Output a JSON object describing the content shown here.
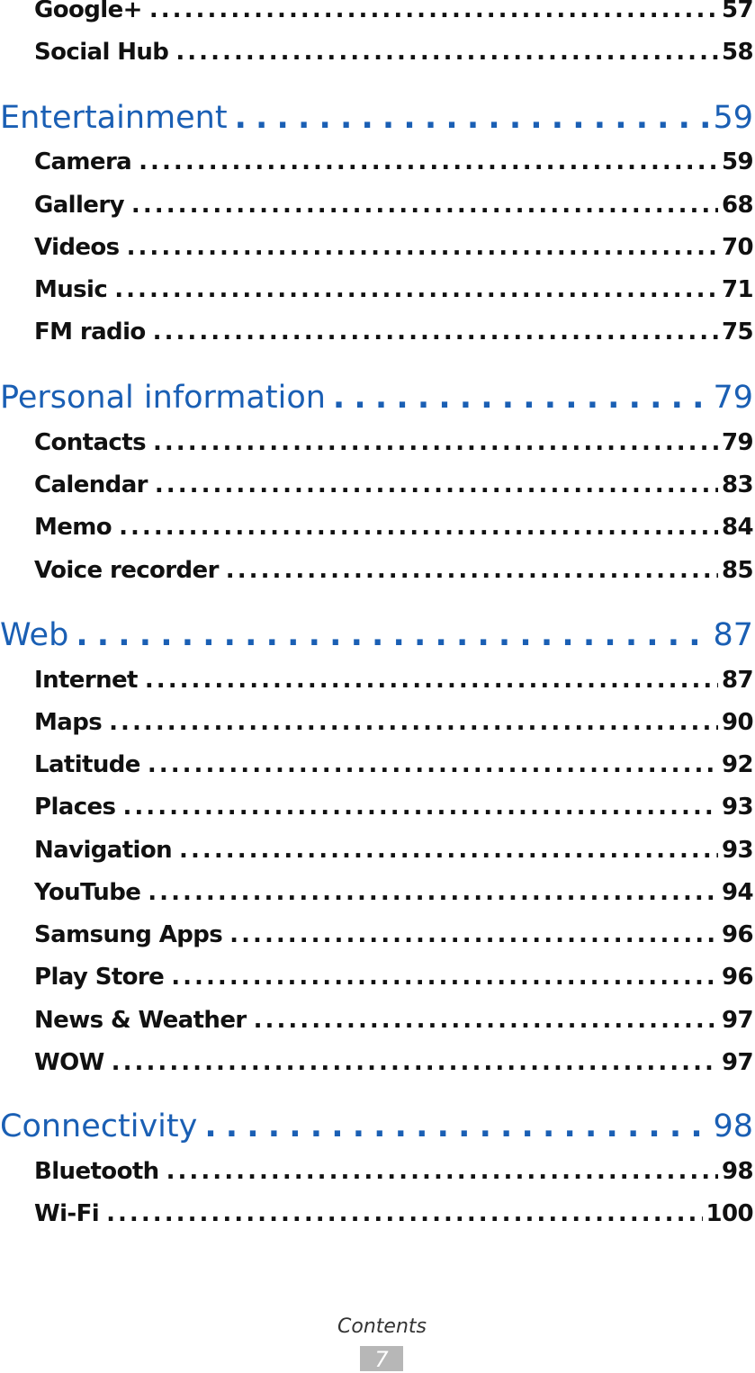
{
  "toc": {
    "entries": [
      {
        "label": "Google+",
        "page": "57",
        "level": "sub"
      },
      {
        "label": "Social Hub",
        "page": "58",
        "level": "sub"
      },
      {
        "label": "Entertainment",
        "page": "59",
        "level": "section"
      },
      {
        "label": "Camera",
        "page": "59",
        "level": "sub"
      },
      {
        "label": "Gallery",
        "page": "68",
        "level": "sub"
      },
      {
        "label": "Videos",
        "page": "70",
        "level": "sub"
      },
      {
        "label": "Music",
        "page": "71",
        "level": "sub"
      },
      {
        "label": "FM radio",
        "page": "75",
        "level": "sub"
      },
      {
        "label": "Personal information",
        "page": "79",
        "level": "section"
      },
      {
        "label": "Contacts",
        "page": "79",
        "level": "sub"
      },
      {
        "label": "Calendar",
        "page": "83",
        "level": "sub"
      },
      {
        "label": "Memo",
        "page": "84",
        "level": "sub"
      },
      {
        "label": "Voice recorder",
        "page": "85",
        "level": "sub"
      },
      {
        "label": "Web",
        "page": "87",
        "level": "section"
      },
      {
        "label": "Internet",
        "page": "87",
        "level": "sub"
      },
      {
        "label": "Maps",
        "page": "90",
        "level": "sub"
      },
      {
        "label": "Latitude",
        "page": "92",
        "level": "sub"
      },
      {
        "label": "Places",
        "page": "93",
        "level": "sub"
      },
      {
        "label": "Navigation",
        "page": "93",
        "level": "sub"
      },
      {
        "label": "YouTube",
        "page": "94",
        "level": "sub"
      },
      {
        "label": "Samsung Apps",
        "page": "96",
        "level": "sub"
      },
      {
        "label": "Play Store",
        "page": "96",
        "level": "sub"
      },
      {
        "label": "News & Weather",
        "page": "97",
        "level": "sub"
      },
      {
        "label": "WOW",
        "page": "97",
        "level": "sub"
      },
      {
        "label": "Connectivity",
        "page": "98",
        "level": "section"
      },
      {
        "label": "Bluetooth",
        "page": "98",
        "level": "sub"
      },
      {
        "label": "Wi-Fi",
        "page": "100",
        "level": "sub"
      }
    ]
  },
  "footer": {
    "label": "Contents",
    "page_number": "7"
  },
  "colors": {
    "section": "#1a5fb4",
    "entry": "#111111",
    "page_badge": "#b7b7b7"
  }
}
